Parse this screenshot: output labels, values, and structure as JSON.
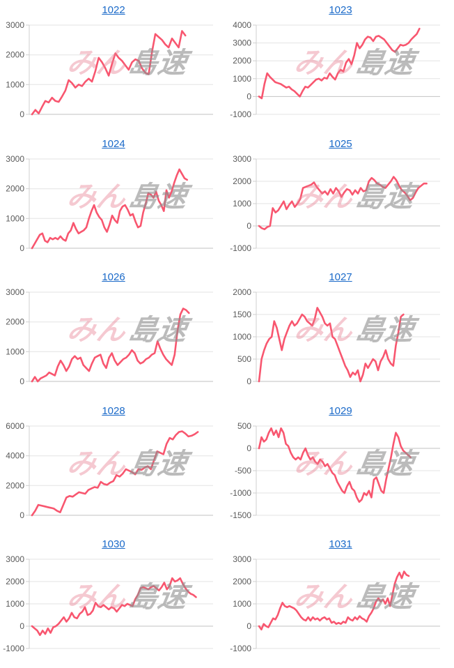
{
  "watermark": {
    "pink_text": "みん",
    "gray_text": "島速",
    "pink_color": "#e87f92",
    "gray_color": "#8f8f8f"
  },
  "colors": {
    "line": "#f8566f",
    "link": "#1b6ac9",
    "grid": "#e3e3e3",
    "zero_line": "#c2c2c2",
    "axis": "#cfcfcf",
    "tick_label": "#595959"
  },
  "chart_data": [
    {
      "type": "line",
      "title": "1022",
      "ylim": [
        0,
        3000
      ],
      "yticks": [
        0,
        1000,
        2000,
        3000
      ],
      "x_fraction": 0.86,
      "values": [
        0,
        150,
        30,
        250,
        450,
        400,
        560,
        450,
        420,
        600,
        800,
        1150,
        1050,
        900,
        1000,
        950,
        1100,
        1200,
        1100,
        1450,
        1900,
        1750,
        1550,
        1300,
        1700,
        2050,
        1900,
        1800,
        1650,
        1500,
        1750,
        1850,
        1800,
        1550,
        1400,
        1350,
        2100,
        2700,
        2600,
        2500,
        2350,
        2250,
        2550,
        2400,
        2250,
        2800,
        2650
      ]
    },
    {
      "type": "line",
      "title": "1023",
      "ylim": [
        -1000,
        4000
      ],
      "yticks": [
        -1000,
        0,
        1000,
        2000,
        3000,
        4000
      ],
      "x_fraction": 0.9,
      "values": [
        0,
        -100,
        700,
        1300,
        1100,
        950,
        800,
        750,
        700,
        600,
        500,
        550,
        400,
        300,
        150,
        0,
        300,
        550,
        500,
        650,
        800,
        950,
        1000,
        900,
        1050,
        1000,
        1300,
        1100,
        950,
        1300,
        1500,
        1400,
        1900,
        2100,
        1800,
        2300,
        3000,
        2700,
        2900,
        3200,
        3350,
        3300,
        3100,
        3350,
        3400,
        3300,
        3200,
        3000,
        2800,
        2600,
        2500,
        2700,
        2900,
        2850,
        2900,
        3000,
        3200,
        3350,
        3500,
        3800
      ]
    },
    {
      "type": "line",
      "title": "1024",
      "ylim": [
        0,
        3000
      ],
      "yticks": [
        0,
        1000,
        2000,
        3000
      ],
      "x_fraction": 0.87,
      "values": [
        0,
        150,
        300,
        450,
        500,
        250,
        200,
        350,
        300,
        350,
        300,
        400,
        300,
        250,
        500,
        600,
        850,
        650,
        500,
        550,
        600,
        700,
        1000,
        1250,
        1450,
        1200,
        1050,
        950,
        700,
        550,
        800,
        1100,
        950,
        850,
        1250,
        1400,
        1450,
        1300,
        1100,
        1150,
        900,
        700,
        750,
        1200,
        1500,
        1850,
        1800,
        1700,
        1900,
        1600,
        1450,
        1250,
        1950,
        1700,
        1900,
        2200,
        2450,
        2650,
        2500,
        2350,
        2300
      ]
    },
    {
      "type": "line",
      "title": "1025",
      "ylim": [
        -1000,
        3000
      ],
      "yticks": [
        -1000,
        0,
        1000,
        2000,
        3000
      ],
      "x_fraction": 0.94,
      "values": [
        0,
        -100,
        -150,
        -50,
        0,
        800,
        600,
        700,
        900,
        1100,
        750,
        950,
        1100,
        850,
        1000,
        1200,
        1700,
        1750,
        1800,
        1850,
        1950,
        1750,
        1600,
        1450,
        1550,
        1400,
        1650,
        1450,
        1700,
        1550,
        1300,
        1500,
        1650,
        1600,
        1400,
        1600,
        1450,
        1700,
        1550,
        1600,
        2000,
        2150,
        2050,
        1900,
        1850,
        1750,
        1700,
        1850,
        2000,
        2200,
        2050,
        1800,
        1600,
        1500,
        1350,
        1150,
        1250,
        1500,
        1700,
        1800,
        1900,
        1900
      ]
    },
    {
      "type": "line",
      "title": "1026",
      "ylim": [
        0,
        3000
      ],
      "yticks": [
        0,
        1000,
        2000,
        3000
      ],
      "x_fraction": 0.88,
      "values": [
        0,
        150,
        0,
        100,
        150,
        200,
        300,
        250,
        200,
        500,
        700,
        550,
        350,
        500,
        750,
        850,
        750,
        800,
        550,
        450,
        350,
        600,
        800,
        850,
        900,
        600,
        450,
        800,
        950,
        700,
        550,
        650,
        750,
        800,
        900,
        1050,
        950,
        700,
        600,
        650,
        750,
        800,
        900,
        950,
        1350,
        1100,
        900,
        750,
        650,
        550,
        900,
        1700,
        2250,
        2450,
        2400,
        2300
      ]
    },
    {
      "type": "line",
      "title": "1027",
      "ylim": [
        0,
        2000
      ],
      "yticks": [
        0,
        500,
        1000,
        1500,
        2000
      ],
      "x_fraction": 0.81,
      "values": [
        0,
        500,
        700,
        850,
        950,
        1000,
        1350,
        1200,
        950,
        700,
        950,
        1100,
        1250,
        1350,
        1250,
        1300,
        1400,
        1500,
        1450,
        1350,
        1300,
        1250,
        1400,
        1650,
        1550,
        1450,
        1300,
        1250,
        1300,
        1000,
        950,
        800,
        650,
        500,
        350,
        250,
        100,
        200,
        150,
        250,
        0,
        150,
        400,
        300,
        400,
        500,
        450,
        250,
        450,
        550,
        700,
        500,
        400,
        350,
        800,
        1100,
        1450,
        1500
      ]
    },
    {
      "type": "line",
      "title": "1028",
      "ylim": [
        0,
        6000
      ],
      "yticks": [
        0,
        2000,
        4000,
        6000
      ],
      "x_fraction": 0.93,
      "values": [
        0,
        300,
        700,
        650,
        600,
        550,
        500,
        450,
        300,
        200,
        700,
        1200,
        1300,
        1250,
        1400,
        1550,
        1500,
        1450,
        1700,
        1800,
        1900,
        1850,
        2250,
        2100,
        2050,
        2200,
        2300,
        2700,
        2600,
        2800,
        3100,
        3000,
        2900,
        2750,
        3100,
        3050,
        3200,
        3300,
        3100,
        3700,
        4300,
        4200,
        4100,
        4800,
        5200,
        5100,
        5400,
        5600,
        5650,
        5500,
        5300,
        5350,
        5450,
        5600
      ]
    },
    {
      "type": "line",
      "title": "1029",
      "ylim": [
        -1500,
        500
      ],
      "yticks": [
        -1500,
        -1000,
        -500,
        0,
        500
      ],
      "x_fraction": 0.85,
      "values": [
        0,
        250,
        150,
        200,
        350,
        450,
        300,
        400,
        250,
        450,
        350,
        100,
        50,
        -100,
        -200,
        -250,
        -200,
        -250,
        -100,
        0,
        -150,
        -250,
        -200,
        -300,
        -350,
        -250,
        -300,
        -400,
        -350,
        -450,
        -550,
        -600,
        -750,
        -850,
        -950,
        -1000,
        -850,
        -750,
        -900,
        -950,
        -1100,
        -1200,
        -1150,
        -1000,
        -1050,
        -950,
        -1100,
        -700,
        -650,
        -800,
        -950,
        -1000,
        -700,
        -450,
        -200,
        100,
        350,
        250,
        50,
        -50,
        -100,
        -150,
        -200
      ]
    },
    {
      "type": "line",
      "title": "1030",
      "ylim": [
        -1000,
        3000
      ],
      "yticks": [
        -1000,
        0,
        1000,
        2000,
        3000
      ],
      "x_fraction": 0.92,
      "values": [
        0,
        -100,
        -200,
        -400,
        -200,
        -350,
        -100,
        -300,
        -50,
        0,
        100,
        250,
        400,
        200,
        350,
        600,
        400,
        350,
        550,
        650,
        850,
        500,
        550,
        700,
        1050,
        900,
        850,
        950,
        850,
        750,
        850,
        800,
        650,
        800,
        950,
        900,
        1000,
        950,
        900,
        1200,
        1400,
        1700,
        1750,
        1700,
        1650,
        1750,
        1800,
        1700,
        1600,
        1750,
        1950,
        1650,
        1800,
        2150,
        2000,
        2050,
        2150,
        1900,
        1700,
        1550,
        1450,
        1400,
        1300
      ]
    },
    {
      "type": "line",
      "title": "1031",
      "ylim": [
        -1000,
        3000
      ],
      "yticks": [
        -1000,
        0,
        1000,
        2000,
        3000
      ],
      "x_fraction": 0.84,
      "values": [
        0,
        -150,
        100,
        0,
        -50,
        150,
        350,
        300,
        500,
        800,
        1050,
        900,
        850,
        900,
        850,
        800,
        700,
        550,
        400,
        300,
        250,
        400,
        250,
        400,
        300,
        350,
        250,
        350,
        400,
        300,
        350,
        150,
        200,
        100,
        150,
        100,
        200,
        150,
        400,
        300,
        250,
        400,
        300,
        450,
        350,
        300,
        200,
        450,
        600,
        800,
        1100,
        1250,
        1100,
        1200,
        1000,
        1250,
        900,
        1400,
        1900,
        2200,
        2400,
        2150,
        2450,
        2300,
        2250
      ]
    }
  ]
}
